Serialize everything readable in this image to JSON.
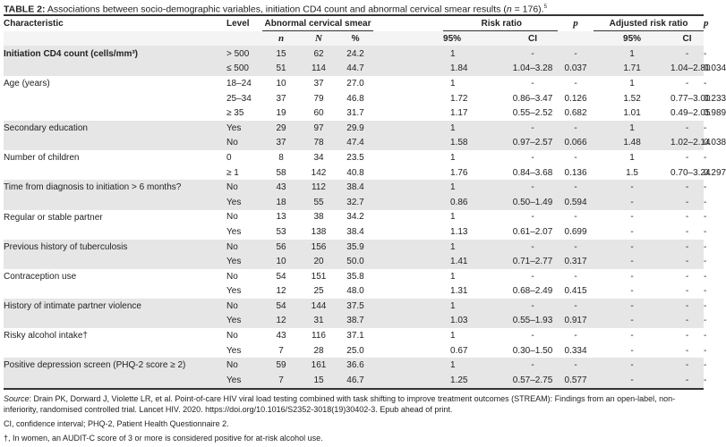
{
  "title": {
    "label": "TABLE 2:",
    "text": "Associations between socio-demographic variables, initiation CD4 count and abnormal cervical smear results (",
    "n": "n",
    "eq": " = 176).",
    "sup": "5"
  },
  "headers": {
    "characteristic": "Characteristic",
    "level": "Level",
    "abnormal": "Abnormal cervical smear",
    "risk_ratio": "Risk ratio",
    "p": "p",
    "adjusted": "Adjusted risk ratio",
    "p2": "p",
    "n": "n",
    "N": "N",
    "pct": "%",
    "rr95": "95%",
    "rrci": "CI",
    "arr95": "95%",
    "arrci": "CI"
  },
  "groups": [
    {
      "name": "Initiation CD4 count (cells/mm³)",
      "bold": true,
      "rows": [
        [
          "> 500",
          "15",
          "62",
          "24.2",
          "1",
          "-",
          "-",
          "1",
          "-",
          "-"
        ],
        [
          "≤ 500",
          "51",
          "114",
          "44.7",
          "1.84",
          "1.04–3.28",
          "0.037",
          "1.71",
          "1.04–2.80",
          "0.034"
        ]
      ]
    },
    {
      "name": "Age (years)",
      "rows": [
        [
          "18–24",
          "10",
          "37",
          "27.0",
          "1",
          "-",
          "-",
          "1",
          "-",
          "-"
        ],
        [
          "25–34",
          "37",
          "79",
          "46.8",
          "1.72",
          "0.86–3.47",
          "0.126",
          "1.52",
          "0.77–3.00",
          "0.233"
        ],
        [
          "≥ 35",
          "19",
          "60",
          "31.7",
          "1.17",
          "0.55–2.52",
          "0.682",
          "1.01",
          "0.49–2.05",
          "0.989"
        ]
      ]
    },
    {
      "name": "Secondary education",
      "rows": [
        [
          "Yes",
          "29",
          "97",
          "29.9",
          "1",
          "-",
          "-",
          "1",
          "-",
          "-"
        ],
        [
          "No",
          "37",
          "78",
          "47.4",
          "1.58",
          "0.97–2.57",
          "0.066",
          "1.48",
          "1.02–2.14",
          "0.038"
        ]
      ]
    },
    {
      "name": "Number of children",
      "rows": [
        [
          "0",
          "8",
          "34",
          "23.5",
          "1",
          "-",
          "-",
          "1",
          "-",
          "-"
        ],
        [
          "≥ 1",
          "58",
          "142",
          "40.8",
          "1.76",
          "0.84–3.68",
          "0.136",
          "1.5",
          "0.70–3.24",
          "0.297"
        ]
      ]
    },
    {
      "name": "Time from diagnosis to initiation > 6 months?",
      "rows": [
        [
          "No",
          "43",
          "112",
          "38.4",
          "1",
          "-",
          "-",
          "-",
          "-",
          "-"
        ],
        [
          "Yes",
          "18",
          "55",
          "32.7",
          "0.86",
          "0.50–1.49",
          "0.594",
          "-",
          "-",
          "-"
        ]
      ]
    },
    {
      "name": "Regular or stable partner",
      "rows": [
        [
          "No",
          "13",
          "38",
          "34.2",
          "1",
          "-",
          "-",
          "-",
          "-",
          "-"
        ],
        [
          "Yes",
          "53",
          "138",
          "38.4",
          "1.13",
          "0.61–2.07",
          "0.699",
          "-",
          "-",
          "-"
        ]
      ]
    },
    {
      "name": "Previous history of tuberculosis",
      "rows": [
        [
          "No",
          "56",
          "156",
          "35.9",
          "1",
          "-",
          "-",
          "-",
          "-",
          "-"
        ],
        [
          "Yes",
          "10",
          "20",
          "50.0",
          "1.41",
          "0.71–2.77",
          "0.317",
          "-",
          "-",
          "-"
        ]
      ]
    },
    {
      "name": "Contraception use",
      "rows": [
        [
          "No",
          "54",
          "151",
          "35.8",
          "1",
          "-",
          "-",
          "-",
          "-",
          "-"
        ],
        [
          "Yes",
          "12",
          "25",
          "48.0",
          "1.31",
          "0.68–2.49",
          "0.415",
          "-",
          "-",
          "-"
        ]
      ]
    },
    {
      "name": "History of intimate partner violence",
      "rows": [
        [
          "No",
          "54",
          "144",
          "37.5",
          "1",
          "-",
          "-",
          "-",
          "-",
          "-"
        ],
        [
          "Yes",
          "12",
          "31",
          "38.7",
          "1.03",
          "0.55–1.93",
          "0.917",
          "-",
          "-",
          "-"
        ]
      ]
    },
    {
      "name": "Risky alcohol intake†",
      "rows": [
        [
          "No",
          "43",
          "116",
          "37.1",
          "1",
          "-",
          "-",
          "-",
          "-",
          "-"
        ],
        [
          "Yes",
          "7",
          "28",
          "25.0",
          "0.67",
          "0.30–1.50",
          "0.334",
          "-",
          "-",
          "-"
        ]
      ]
    },
    {
      "name": "Positive depression screen (PHQ-2 score ≥ 2)",
      "rows": [
        [
          "No",
          "59",
          "161",
          "36.6",
          "1",
          "-",
          "-",
          "-",
          "-",
          "-"
        ],
        [
          "Yes",
          "7",
          "15",
          "46.7",
          "1.25",
          "0.57–2.75",
          "0.577",
          "-",
          "-",
          "-"
        ]
      ]
    }
  ],
  "notes": {
    "source_label": "Source",
    "source": ": Drain PK, Dorward J, Violette LR, et al. Point-of-care HIV viral load testing combined with task shifting to improve treatment outcomes (STREAM): Findings from an open-label, non-inferiority, randomised controlled trial. Lancet HIV. 2020. https://doi.org/10.1016/S2352-3018(19)30402-3. Epub ahead of print.",
    "abbrev": "CI, confidence interval; PHQ-2, Patient Health Questionnaire 2.",
    "dagger": "†, In women, an AUDIT-C score of 3 or more is considered positive for at-risk alcohol use."
  },
  "colors": {
    "shade": "#e6e6e6",
    "rule": "#333333"
  }
}
